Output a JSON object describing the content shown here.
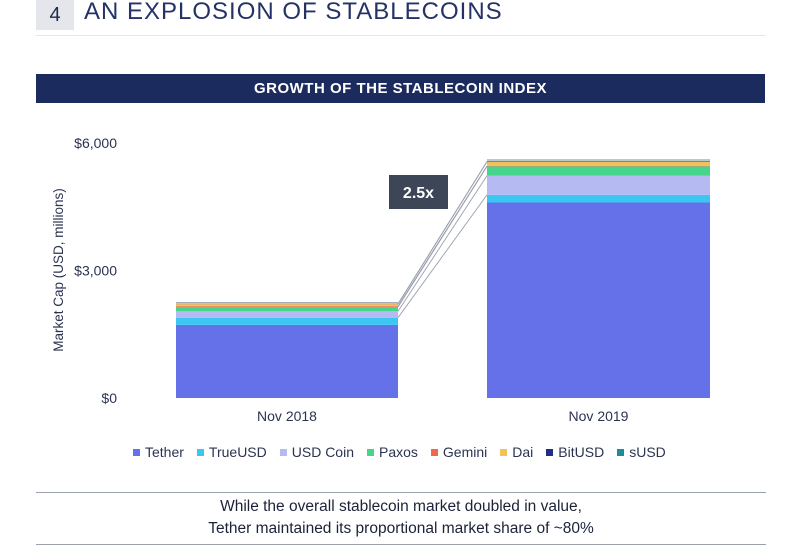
{
  "header": {
    "section_number": "4",
    "section_title": "AN EXPLOSION OF STABLECOINS"
  },
  "chart_banner": "GROWTH OF THE STABLECOIN INDEX",
  "callout": "2.5x",
  "footnote": {
    "line1": "While the overall stablecoin market doubled in value,",
    "line2": "Tether maintained its proportional market share of ~80%"
  },
  "chart_data": {
    "type": "bar",
    "stacked": true,
    "title": "GROWTH OF THE STABLECOIN INDEX",
    "ylabel": "Market Cap (USD, millions)",
    "xlabel": "",
    "categories": [
      "Nov 2018",
      "Nov 2019"
    ],
    "ylim": [
      0,
      6000
    ],
    "yticks": [
      0,
      3000,
      6000
    ],
    "ytick_labels": [
      "$0",
      "$3,000",
      "$6,000"
    ],
    "legend_position": "bottom",
    "series": [
      {
        "name": "Tether",
        "color": "#6471e8",
        "values": [
          1720,
          4600
        ]
      },
      {
        "name": "TrueUSD",
        "color": "#3cc7f3",
        "values": [
          170,
          180
        ]
      },
      {
        "name": "USD Coin",
        "color": "#b5baf2",
        "values": [
          150,
          450
        ]
      },
      {
        "name": "Paxos",
        "color": "#45d68c",
        "values": [
          100,
          220
        ]
      },
      {
        "name": "Gemini",
        "color": "#ef6a4b",
        "values": [
          20,
          10
        ]
      },
      {
        "name": "Dai",
        "color": "#f2c15a",
        "values": [
          50,
          100
        ]
      },
      {
        "name": "BitUSD",
        "color": "#1d2e86",
        "values": [
          5,
          5
        ]
      },
      {
        "name": "sUSD",
        "color": "#1f8a98",
        "values": [
          5,
          15
        ]
      }
    ]
  }
}
